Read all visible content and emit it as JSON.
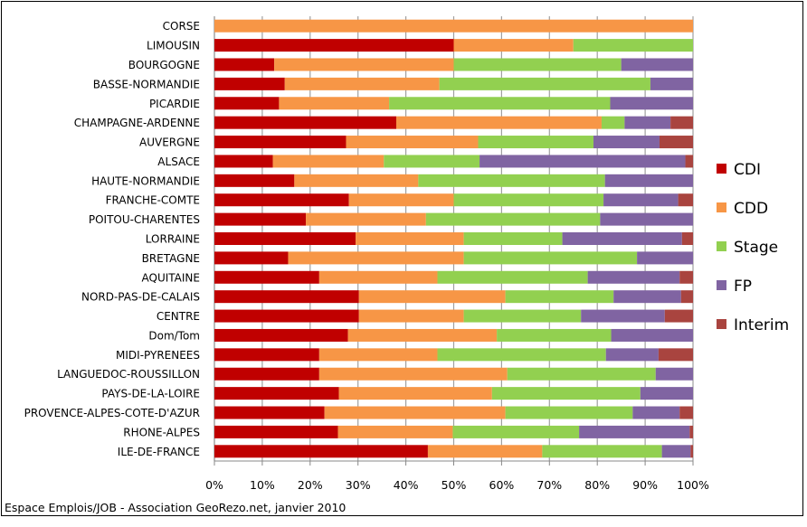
{
  "chart_data": {
    "type": "bar",
    "orientation": "horizontal",
    "stacked": "percent",
    "categories": [
      "CORSE",
      "LIMOUSIN",
      "BOURGOGNE",
      "BASSE-NORMANDIE",
      "PICARDIE",
      "CHAMPAGNE-ARDENNE",
      "AUVERGNE",
      "ALSACE",
      "HAUTE-NORMANDIE",
      "FRANCHE-COMTE",
      "POITOU-CHARENTES",
      "LORRAINE",
      "BRETAGNE",
      "AQUITAINE",
      "NORD-PAS-DE-CALAIS",
      "CENTRE",
      "Dom/Tom",
      "MIDI-PYRENEES",
      "LANGUEDOC-ROUSSILLON",
      "PAYS-DE-LA-LOIRE",
      "PROVENCE-ALPES-COTE-D'AZUR",
      "RHONE-ALPES",
      "ILE-DE-FRANCE"
    ],
    "series": [
      {
        "name": "CDI",
        "color": "#C00000",
        "values": [
          0,
          50,
          12.5,
          14.7,
          13.5,
          38,
          27.5,
          12.2,
          16.7,
          28.1,
          19.1,
          29.5,
          15.4,
          21.9,
          30.2,
          30.2,
          27.9,
          21.9,
          21.9,
          26,
          23,
          25.8,
          44.6
        ]
      },
      {
        "name": "CDD",
        "color": "#F79646",
        "values": [
          100,
          25,
          37.5,
          32.3,
          23,
          42.9,
          27.6,
          23.2,
          25.9,
          21.9,
          25.1,
          22.6,
          36.7,
          24.7,
          30.6,
          21.9,
          31.1,
          24.7,
          39.3,
          32,
          37.8,
          24,
          23.9
        ]
      },
      {
        "name": "Stage",
        "color": "#92D050",
        "values": [
          0,
          25,
          35,
          44.1,
          46.2,
          4.8,
          24.1,
          20,
          39,
          31.3,
          36.4,
          20.6,
          36.2,
          31.4,
          22.6,
          24.5,
          23.9,
          35.2,
          31,
          31,
          26.6,
          26.4,
          25
        ]
      },
      {
        "name": "FP",
        "color": "#8064A2",
        "values": [
          0,
          0,
          15,
          8.9,
          17.3,
          9.6,
          13.8,
          43,
          18.4,
          15.6,
          19.4,
          25,
          11.7,
          19.2,
          14.1,
          17.5,
          17.1,
          11,
          7.8,
          11,
          9.8,
          23.1,
          6
        ]
      },
      {
        "name": "Interim",
        "color": "#A9443F",
        "values": [
          0,
          0,
          0,
          0,
          0,
          4.7,
          7,
          1.6,
          0,
          3.1,
          0,
          2.3,
          0,
          2.8,
          2.5,
          5.9,
          0,
          7.2,
          0,
          0,
          2.8,
          0.7,
          0.5
        ]
      }
    ],
    "xlim": [
      0,
      100
    ],
    "xticks": [
      "0%",
      "10%",
      "20%",
      "30%",
      "40%",
      "50%",
      "60%",
      "70%",
      "80%",
      "90%",
      "100%"
    ],
    "grid": true,
    "legend": "right"
  },
  "footer": "Espace Emplois/JOB - Association GeoRezo.net, janvier 2010"
}
